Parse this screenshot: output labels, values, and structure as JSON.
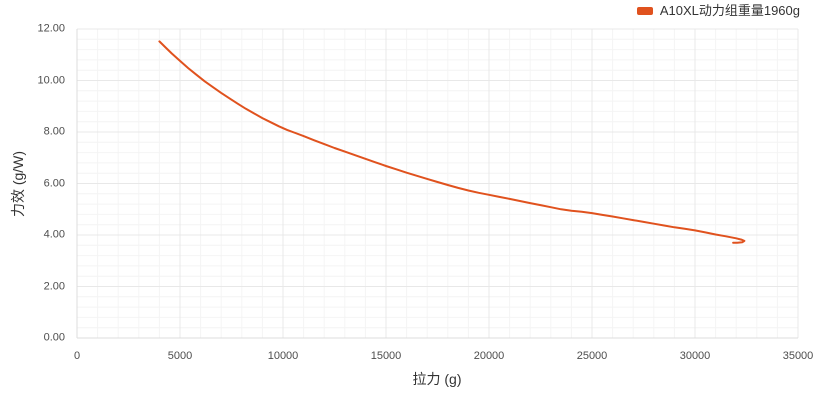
{
  "legend": {
    "label": "A10XL动力组重量1960g",
    "color": "#e0521e"
  },
  "chart_data": {
    "type": "line",
    "title": "",
    "xlabel": "拉力 (g)",
    "ylabel": "力效 (g/W)",
    "xlim": [
      0,
      35000
    ],
    "ylim": [
      0,
      12
    ],
    "x_ticks": [
      0,
      5000,
      10000,
      15000,
      20000,
      25000,
      30000,
      35000
    ],
    "y_tick_values": [
      0,
      2,
      4,
      6,
      8,
      10,
      12
    ],
    "y_tick_labels": [
      "0.00",
      "2.00",
      "4.00",
      "6.00",
      "8.00",
      "10.00",
      "12.00"
    ],
    "x_minor_step": 1000,
    "y_minor_step": 0.4,
    "grid": true,
    "grid_minor_color": "#f4f4f4",
    "grid_major_color": "#e8e8e8",
    "legend_position": "top-right",
    "series": [
      {
        "name": "A10XL动力组重量1960g",
        "color": "#e0521e",
        "points": [
          [
            4000,
            11.52
          ],
          [
            4300,
            11.28
          ],
          [
            4600,
            11.05
          ],
          [
            5000,
            10.76
          ],
          [
            5400,
            10.48
          ],
          [
            5800,
            10.22
          ],
          [
            6200,
            9.97
          ],
          [
            6600,
            9.74
          ],
          [
            7000,
            9.52
          ],
          [
            7400,
            9.31
          ],
          [
            7800,
            9.1
          ],
          [
            8200,
            8.9
          ],
          [
            8600,
            8.72
          ],
          [
            9000,
            8.54
          ],
          [
            9400,
            8.38
          ],
          [
            9800,
            8.22
          ],
          [
            10200,
            8.08
          ],
          [
            10600,
            7.96
          ],
          [
            11000,
            7.84
          ],
          [
            11500,
            7.68
          ],
          [
            12000,
            7.53
          ],
          [
            12500,
            7.38
          ],
          [
            13000,
            7.24
          ],
          [
            13500,
            7.1
          ],
          [
            14000,
            6.96
          ],
          [
            14500,
            6.82
          ],
          [
            15000,
            6.68
          ],
          [
            15500,
            6.55
          ],
          [
            16000,
            6.42
          ],
          [
            16500,
            6.3
          ],
          [
            17000,
            6.18
          ],
          [
            17500,
            6.06
          ],
          [
            18000,
            5.94
          ],
          [
            18500,
            5.83
          ],
          [
            19000,
            5.73
          ],
          [
            19500,
            5.64
          ],
          [
            20000,
            5.56
          ],
          [
            20500,
            5.48
          ],
          [
            21000,
            5.4
          ],
          [
            21500,
            5.32
          ],
          [
            22000,
            5.24
          ],
          [
            22500,
            5.16
          ],
          [
            23000,
            5.08
          ],
          [
            23500,
            5.0
          ],
          [
            24000,
            4.94
          ],
          [
            24500,
            4.9
          ],
          [
            25000,
            4.85
          ],
          [
            25500,
            4.78
          ],
          [
            26000,
            4.72
          ],
          [
            26500,
            4.65
          ],
          [
            27000,
            4.58
          ],
          [
            27500,
            4.51
          ],
          [
            28000,
            4.44
          ],
          [
            28500,
            4.37
          ],
          [
            29000,
            4.3
          ],
          [
            29500,
            4.24
          ],
          [
            30000,
            4.18
          ],
          [
            30500,
            4.1
          ],
          [
            31000,
            4.02
          ],
          [
            31500,
            3.95
          ],
          [
            32000,
            3.87
          ],
          [
            32250,
            3.82
          ],
          [
            32400,
            3.77
          ],
          [
            32300,
            3.72
          ],
          [
            32050,
            3.7
          ],
          [
            31850,
            3.7
          ]
        ]
      }
    ]
  }
}
